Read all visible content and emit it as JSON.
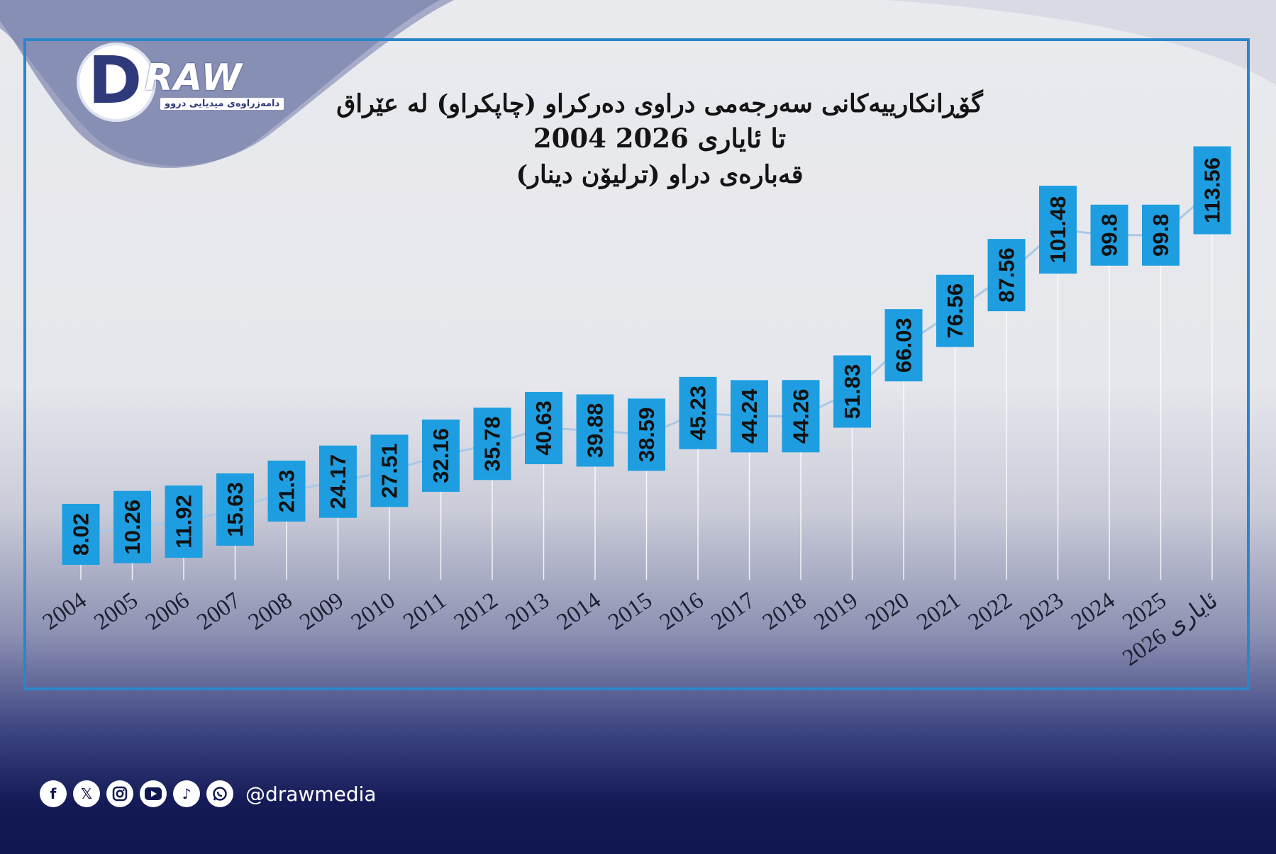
{
  "brand": {
    "logo_letter": "D",
    "logo_word": "RAW",
    "logo_tagline": "دامەزراوەی میدیایی دروو",
    "handle": "@drawmedia",
    "social_icons": [
      "facebook-icon",
      "x-icon",
      "instagram-icon",
      "youtube-icon",
      "tiktok-icon",
      "whatsapp-icon"
    ]
  },
  "colors": {
    "label_box": "#1e9ee0",
    "frame": "#2a86c9",
    "line": "#a9c8e6",
    "footer": "#101650"
  },
  "chart_data": {
    "type": "line",
    "title": "گۆڕانکارییەکانی سەرجەمی دراوی دەرکراو (چاپکراو) لە عێراق",
    "subtitle": "2004 تا ئایاری 2026",
    "ylabel": "قەبارەی دراو (ترلیۆن دینار)",
    "categories": [
      "2004",
      "2005",
      "2006",
      "2007",
      "2008",
      "2009",
      "2010",
      "2011",
      "2012",
      "2013",
      "2014",
      "2015",
      "2016",
      "2017",
      "2018",
      "2019",
      "2020",
      "2021",
      "2022",
      "2023",
      "2024",
      "2025",
      "ئایاری 2026"
    ],
    "values": [
      8.02,
      10.26,
      11.92,
      15.63,
      21.3,
      24.17,
      27.51,
      32.16,
      35.78,
      40.63,
      39.88,
      38.59,
      45.23,
      44.24,
      44.26,
      51.83,
      66.03,
      76.56,
      87.56,
      101.48,
      99.8,
      99.8,
      113.56
    ],
    "data_labels": [
      "8.02",
      "10.26",
      "11.92",
      "15.63",
      "21.3",
      "24.17",
      "27.51",
      "32.16",
      "35.78",
      "40.63",
      "39.88",
      "38.59",
      "45.23",
      "44.24",
      "44.26",
      "51.83",
      "66.03",
      "76.56",
      "87.56",
      "101.48",
      "99.8",
      "99.8",
      "113.56"
    ],
    "grid": false,
    "legend": "none"
  }
}
